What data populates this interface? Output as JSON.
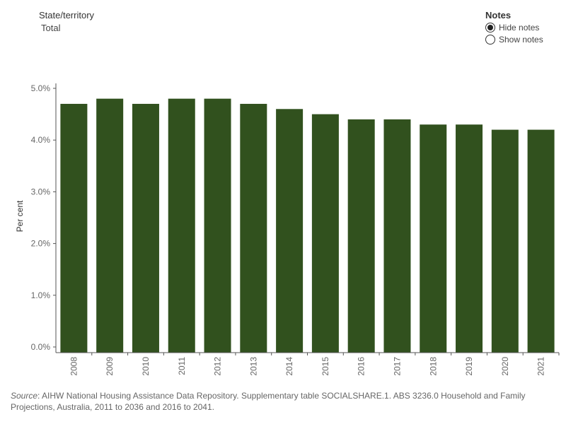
{
  "filter": {
    "label": "State/territory",
    "value": "Total"
  },
  "notes": {
    "title": "Notes",
    "options": [
      {
        "label": "Hide notes",
        "selected": true
      },
      {
        "label": "Show notes",
        "selected": false
      }
    ]
  },
  "chart_data": {
    "type": "bar",
    "categories": [
      "2008",
      "2009",
      "2010",
      "2011",
      "2012",
      "2013",
      "2014",
      "2015",
      "2016",
      "2017",
      "2018",
      "2019",
      "2020",
      "2021"
    ],
    "values": [
      4.7,
      4.8,
      4.7,
      4.8,
      4.8,
      4.7,
      4.6,
      4.5,
      4.4,
      4.4,
      4.3,
      4.3,
      4.2,
      4.2
    ],
    "ylabel": "Per cent",
    "ylim": [
      0,
      5
    ],
    "yticks": [
      {
        "value": 0,
        "label": "0.0%"
      },
      {
        "value": 1,
        "label": "1.0%"
      },
      {
        "value": 2,
        "label": "2.0%"
      },
      {
        "value": 3,
        "label": "3.0%"
      },
      {
        "value": 4,
        "label": "4.0%"
      },
      {
        "value": 5,
        "label": "5.0%"
      }
    ],
    "bar_color": "#31511e",
    "grid": false
  },
  "source": {
    "label": "Source",
    "text": ": AIHW National Housing Assistance Data Repository. Supplementary table SOCIALSHARE.1. ABS 3236.0 Household and Family Projections, Australia, 2011 to 2036 and 2016 to 2041."
  }
}
